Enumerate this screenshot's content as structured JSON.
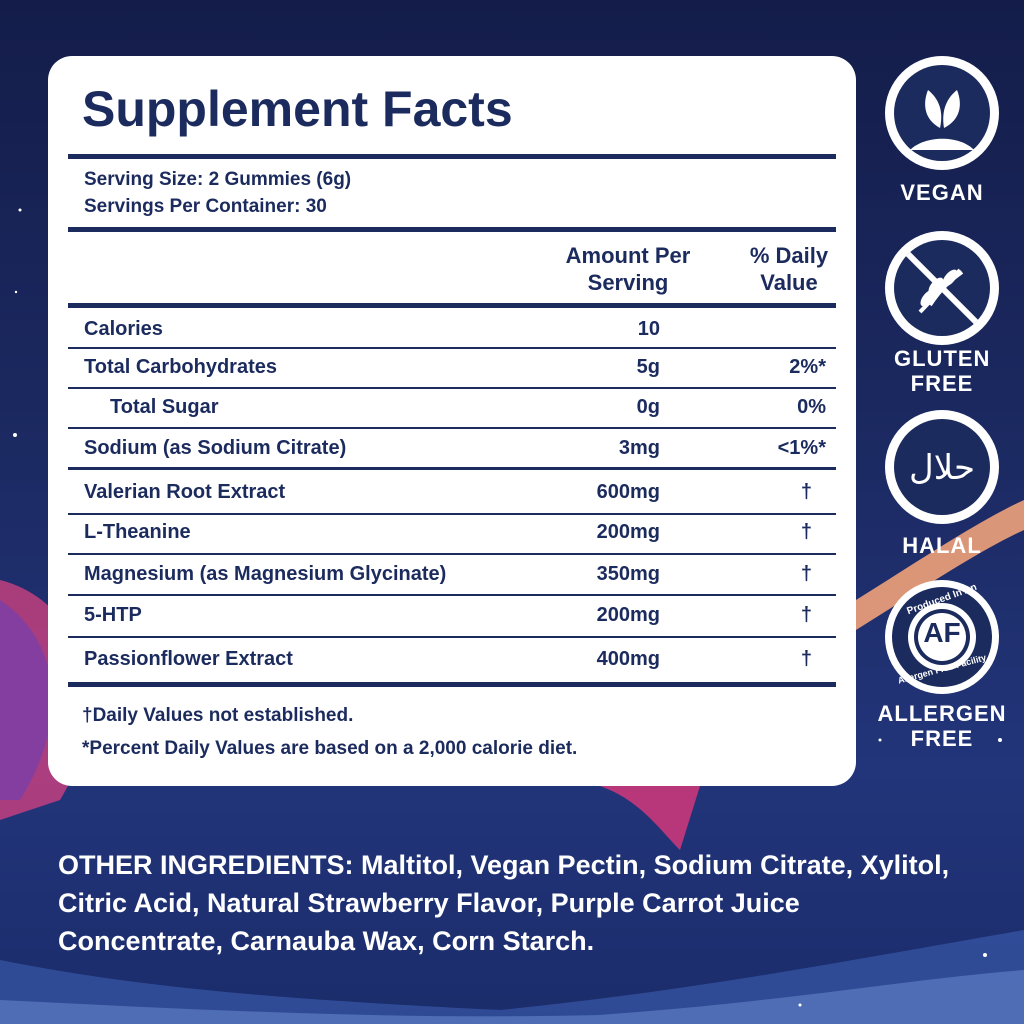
{
  "panel": {
    "title": "Supplement Facts",
    "serving_size": "Serving Size: 2 Gummies (6g)",
    "servings_per_container": "Servings Per Container: 30",
    "columns": [
      "Amount Per Serving",
      "% Daily Value"
    ],
    "rows": [
      [
        "Calories",
        "10"
      ],
      [
        "Total Carbohydrates",
        "5g",
        "2%*"
      ],
      [
        "Total Sugar",
        "0g",
        "0%"
      ],
      [
        "Sodium (as Sodium Citrate)",
        "3mg",
        "<1%*"
      ],
      [
        "Valerian Root Extract",
        "600mg",
        "†"
      ],
      [
        "L-Theanine",
        "200mg",
        "†"
      ],
      [
        "Magnesium (as Magnesium Glycinate)",
        "350mg",
        "†"
      ],
      [
        "5-HTP",
        "200mg",
        "†"
      ],
      [
        "Passionflower Extract",
        "400mg",
        "†"
      ]
    ],
    "footnotes": [
      "†Daily Values not established.",
      "*Percent Daily Values are based on a 2,000 calorie diet."
    ]
  },
  "badges": {
    "vegan": "VEGAN",
    "gluten_free": "GLUTEN FREE",
    "halal": "HALAL",
    "halal_symbol": "حلال",
    "allergen_free": "ALLERGEN FREE",
    "allergen_ring_top": "Produced In An",
    "allergen_ring_bottom": "Allergen Free Facility",
    "allergen_mark": "AF"
  },
  "other_ingredients": {
    "label": "OTHER INGREDIENTS:",
    "text": "Maltitol, Vegan Pectin, Sodium Citrate, Xylitol, Citric Acid, Natural Strawberry Flavor, Purple Carrot Juice Concentrate, Carnauba Wax, Corn Starch."
  }
}
